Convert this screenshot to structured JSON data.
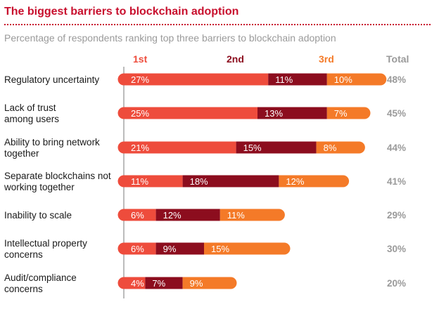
{
  "header": {
    "title": "The biggest barriers to blockchain adoption",
    "subtitle": "Percentage of respondents ranking top three barriers to blockchain adoption"
  },
  "legend": {
    "first": "1st",
    "second": "2nd",
    "third": "3rd",
    "total": "Total"
  },
  "colors": {
    "first": "#ee4c3c",
    "second": "#8c0d1e",
    "third": "#f47a28",
    "title": "#c8102e"
  },
  "chart_data": {
    "type": "bar",
    "stacked": true,
    "orientation": "horizontal",
    "title": "The biggest barriers to blockchain adoption",
    "subtitle": "Percentage of respondents ranking top three barriers to blockchain adoption",
    "categories": [
      [
        "Regulatory uncertainty"
      ],
      [
        "Lack of trust",
        "among users"
      ],
      [
        "Ability to bring network",
        "together"
      ],
      [
        "Separate blockchains not",
        "working together"
      ],
      [
        "Inability to scale"
      ],
      [
        "Intellectual property",
        "concerns"
      ],
      [
        "Audit/compliance",
        "concerns"
      ]
    ],
    "series": [
      {
        "name": "1st",
        "values": [
          27,
          25,
          21,
          11,
          6,
          6,
          4
        ],
        "labels": [
          "27%",
          "25%",
          "21%",
          "11%",
          "6%",
          "6%",
          "4%"
        ]
      },
      {
        "name": "2nd",
        "values": [
          11,
          13,
          15,
          18,
          12,
          9,
          7
        ],
        "labels": [
          "11%",
          "13%",
          "15%",
          "18%",
          "12%",
          "9%",
          "7%"
        ]
      },
      {
        "name": "3rd",
        "values": [
          10,
          7,
          8,
          12,
          11,
          15,
          9
        ],
        "labels": [
          "10%",
          "7%",
          "8%",
          "12%",
          "11%",
          "15%",
          "9%"
        ]
      }
    ],
    "totals": [
      "48%",
      "45%",
      "44%",
      "41%",
      "29%",
      "30%",
      "20%"
    ],
    "xlim": [
      0,
      48
    ],
    "grid": false
  }
}
